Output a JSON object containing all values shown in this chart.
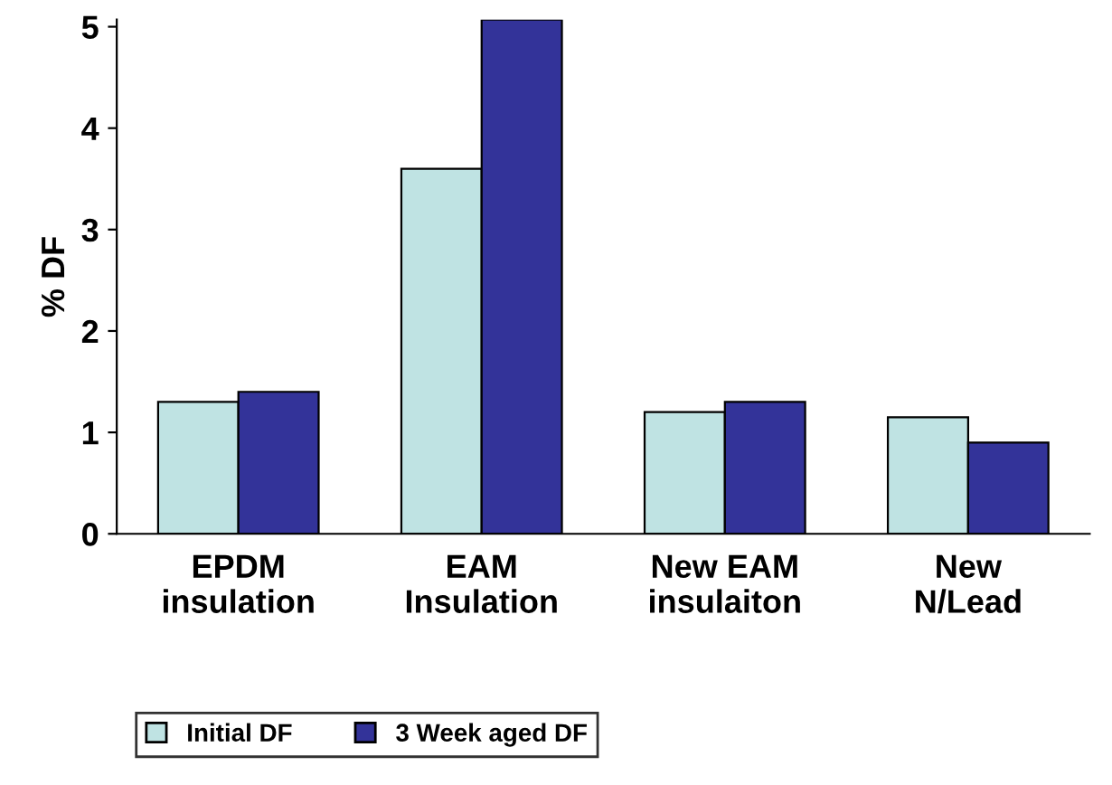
{
  "chart_data": {
    "type": "bar",
    "ylabel": "% DF",
    "categories": [
      "EPDM\ninsulation",
      "EAM\nInsulation",
      "New EAM\ninsulaiton",
      "New\nN/Lead"
    ],
    "series": [
      {
        "name": "Initial DF",
        "color": "#bfe3e3",
        "values": [
          1.3,
          3.6,
          1.2,
          1.15
        ]
      },
      {
        "name": "3 Week aged DF",
        "color": "#333399",
        "values": [
          1.4,
          5.07,
          1.3,
          0.9
        ]
      }
    ],
    "ylim": [
      0,
      5.07
    ],
    "yticks": [
      0,
      1,
      2,
      3,
      4,
      5
    ],
    "grid": false,
    "legend": "bottom"
  }
}
